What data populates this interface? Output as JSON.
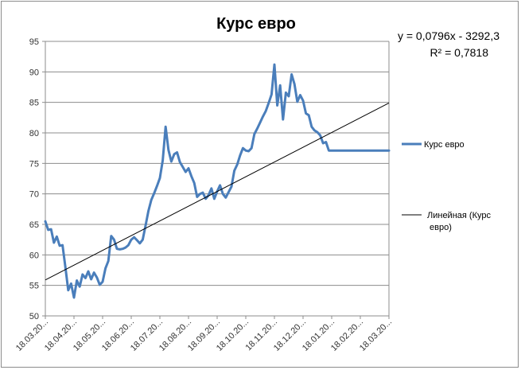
{
  "chart_data": {
    "type": "line",
    "title": "Курс евро",
    "trendline_equation": "y = 0,0796x - 3292,3",
    "r_squared": "R² = 0,7818",
    "ylim": [
      50,
      95
    ],
    "yticks": [
      "50",
      "55",
      "60",
      "65",
      "70",
      "75",
      "80",
      "85",
      "90",
      "95"
    ],
    "xtick_labels": [
      "18.03.20...",
      "18.04.20...",
      "18.05.20...",
      "18.06.20...",
      "18.07.20...",
      "18.08.20...",
      "18.09.20...",
      "18.10.20...",
      "18.11.20...",
      "18.12.20...",
      "18.01.20...",
      "18.02.20...",
      "18.03.20..."
    ],
    "grid": true,
    "legend_position": "right",
    "series": [
      {
        "name": "Курс евро",
        "color": "#4a7ebb",
        "x": [
          0,
          0.1,
          0.2,
          0.3,
          0.4,
          0.5,
          0.6,
          0.7,
          0.8,
          0.9,
          1.0,
          1.1,
          1.2,
          1.3,
          1.4,
          1.5,
          1.6,
          1.7,
          1.8,
          1.9,
          2.0,
          2.1,
          2.2,
          2.3,
          2.4,
          2.5,
          2.6,
          2.7,
          2.8,
          2.9,
          3.0,
          3.1,
          3.2,
          3.3,
          3.4,
          3.5,
          3.6,
          3.7,
          3.8,
          3.9,
          4.0,
          4.1,
          4.2,
          4.3,
          4.4,
          4.5,
          4.6,
          4.7,
          4.8,
          4.9,
          5.0,
          5.1,
          5.2,
          5.3,
          5.4,
          5.5,
          5.6,
          5.7,
          5.8,
          5.9,
          6.0,
          6.1,
          6.2,
          6.3,
          6.4,
          6.5,
          6.6,
          6.7,
          6.8,
          6.9,
          7.0,
          7.1,
          7.2,
          7.3,
          7.4,
          7.5,
          7.6,
          7.7,
          7.8,
          7.9,
          8.0,
          8.1,
          8.2,
          8.3,
          8.4,
          8.5,
          8.6,
          8.7,
          8.8,
          8.9,
          9.0,
          9.1,
          9.2,
          9.3,
          9.4,
          9.5,
          9.6,
          9.7,
          9.8,
          9.9,
          10.0,
          10.1,
          10.2,
          10.3,
          10.4,
          10.5,
          10.6,
          10.7,
          10.8,
          10.9,
          11.0,
          11.1,
          11.2,
          11.3,
          11.4,
          11.5,
          11.6,
          11.7,
          11.8,
          11.9,
          12.0
        ],
        "values": [
          65.5,
          64.1,
          64.2,
          62.0,
          63.0,
          61.5,
          61.6,
          58.0,
          54.2,
          55.3,
          53.0,
          55.8,
          54.8,
          56.8,
          56.2,
          57.3,
          56.0,
          57.1,
          56.3,
          55.1,
          55.6,
          57.8,
          59.0,
          63.1,
          62.5,
          61.0,
          60.9,
          61.0,
          61.2,
          61.6,
          62.5,
          62.9,
          62.4,
          61.9,
          62.5,
          64.8,
          67.2,
          69.0,
          70.1,
          71.3,
          72.6,
          75.5,
          81.0,
          77.2,
          75.3,
          76.5,
          76.8,
          75.2,
          74.4,
          73.6,
          74.2,
          72.9,
          71.8,
          69.5,
          70.0,
          70.2,
          69.2,
          69.8,
          70.9,
          69.2,
          70.4,
          71.4,
          70.0,
          69.4,
          70.3,
          71.2,
          73.8,
          74.8,
          76.3,
          77.5,
          77.1,
          77.0,
          77.5,
          79.8,
          80.7,
          81.7,
          82.7,
          83.6,
          84.9,
          86.3,
          91.2,
          84.5,
          87.8,
          82.2,
          86.6,
          86.0,
          89.6,
          88.0,
          85.1,
          86.2,
          85.3,
          83.2,
          82.9,
          81.0,
          80.4,
          80.1,
          79.6,
          78.3,
          78.5,
          77.1,
          77.1,
          77.1,
          77.1,
          77.1,
          77.1,
          77.1,
          77.1,
          77.1,
          77.1,
          77.1,
          77.1,
          77.1,
          77.1,
          77.1,
          77.1,
          77.1,
          77.1,
          77.1,
          77.1,
          77.1,
          77.1
        ]
      },
      {
        "name": "Линейная (Курс евро)",
        "color": "#000000",
        "x": [
          0,
          12
        ],
        "values": [
          55.9,
          84.9
        ]
      }
    ]
  }
}
